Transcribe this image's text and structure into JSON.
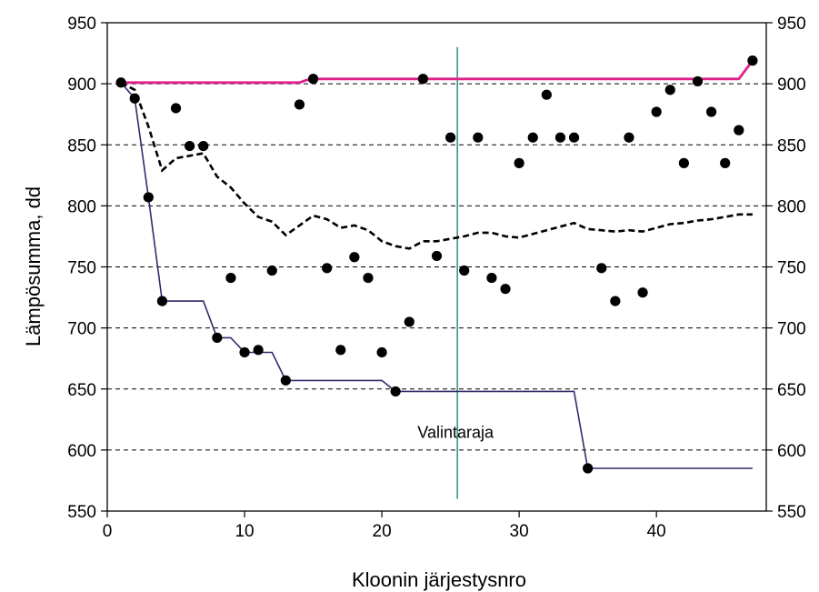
{
  "chart_data": {
    "type": "scatter",
    "title": "",
    "xlabel": "Kloonin järjestysnro",
    "ylabel": "Lämpösumma, dd",
    "xlim": [
      0,
      48
    ],
    "ylim": [
      550,
      950
    ],
    "x_ticks": [
      0,
      10,
      20,
      30,
      40
    ],
    "y_ticks": [
      550,
      600,
      650,
      700,
      750,
      800,
      850,
      900,
      950
    ],
    "y_ticks_right": [
      550,
      600,
      650,
      700,
      750,
      800,
      850,
      900,
      950
    ],
    "grid": "horizontal dashed",
    "legend": "none",
    "annotation": {
      "text": "Valintaraja",
      "x": 25.5
    },
    "colors": {
      "max_line": "#e0208a",
      "min_line": "#2e2d6b",
      "mean_line": "#000000",
      "points": "#000000",
      "threshold": "#2e8a80"
    },
    "points": [
      [
        1,
        901
      ],
      [
        2,
        888
      ],
      [
        3,
        807
      ],
      [
        4,
        722
      ],
      [
        5,
        880
      ],
      [
        6,
        849
      ],
      [
        7,
        849
      ],
      [
        8,
        692
      ],
      [
        9,
        741
      ],
      [
        10,
        680
      ],
      [
        11,
        682
      ],
      [
        12,
        747
      ],
      [
        13,
        657
      ],
      [
        14,
        883
      ],
      [
        15,
        904
      ],
      [
        16,
        749
      ],
      [
        17,
        682
      ],
      [
        18,
        758
      ],
      [
        19,
        741
      ],
      [
        20,
        680
      ],
      [
        21,
        648
      ],
      [
        22,
        705
      ],
      [
        23,
        904
      ],
      [
        24,
        759
      ],
      [
        25,
        856
      ],
      [
        26,
        747
      ],
      [
        27,
        856
      ],
      [
        28,
        741
      ],
      [
        29,
        732
      ],
      [
        30,
        835
      ],
      [
        31,
        856
      ],
      [
        32,
        891
      ],
      [
        33,
        856
      ],
      [
        34,
        856
      ],
      [
        35,
        585
      ],
      [
        36,
        749
      ],
      [
        37,
        722
      ],
      [
        38,
        856
      ],
      [
        39,
        729
      ],
      [
        40,
        877
      ],
      [
        41,
        895
      ],
      [
        42,
        835
      ],
      [
        43,
        902
      ],
      [
        44,
        877
      ],
      [
        45,
        835
      ],
      [
        46,
        862
      ],
      [
        47,
        919
      ]
    ],
    "max_line": [
      [
        1,
        901
      ],
      [
        14,
        901
      ],
      [
        14.5,
        903
      ],
      [
        15,
        904
      ],
      [
        46,
        904
      ],
      [
        47,
        919
      ]
    ],
    "min_line": [
      [
        1,
        901
      ],
      [
        2,
        888
      ],
      [
        3,
        807
      ],
      [
        4,
        722
      ],
      [
        7,
        722
      ],
      [
        8,
        692
      ],
      [
        9,
        692
      ],
      [
        10,
        680
      ],
      [
        12,
        680
      ],
      [
        13,
        657
      ],
      [
        20,
        657
      ],
      [
        21,
        648
      ],
      [
        34,
        648
      ],
      [
        35,
        585
      ],
      [
        47,
        585
      ]
    ],
    "mean_line": [
      [
        1,
        901
      ],
      [
        2,
        895
      ],
      [
        3,
        865
      ],
      [
        4,
        829
      ],
      [
        5,
        839
      ],
      [
        6,
        841
      ],
      [
        7,
        843
      ],
      [
        8,
        824
      ],
      [
        9,
        815
      ],
      [
        10,
        802
      ],
      [
        11,
        791
      ],
      [
        12,
        787
      ],
      [
        13,
        776
      ],
      [
        14,
        784
      ],
      [
        15,
        792
      ],
      [
        16,
        789
      ],
      [
        17,
        782
      ],
      [
        18,
        784
      ],
      [
        19,
        780
      ],
      [
        20,
        771
      ],
      [
        21,
        767
      ],
      [
        22,
        765
      ],
      [
        23,
        771
      ],
      [
        24,
        771
      ],
      [
        25,
        773
      ],
      [
        26,
        775
      ],
      [
        27,
        778
      ],
      [
        28,
        778
      ],
      [
        29,
        775
      ],
      [
        30,
        774
      ],
      [
        31,
        777
      ],
      [
        32,
        780
      ],
      [
        33,
        783
      ],
      [
        34,
        786
      ],
      [
        35,
        781
      ],
      [
        36,
        780
      ],
      [
        37,
        779
      ],
      [
        38,
        780
      ],
      [
        39,
        779
      ],
      [
        40,
        782
      ],
      [
        41,
        785
      ],
      [
        42,
        786
      ],
      [
        43,
        788
      ],
      [
        44,
        789
      ],
      [
        45,
        791
      ],
      [
        46,
        793
      ],
      [
        47,
        793
      ]
    ]
  }
}
